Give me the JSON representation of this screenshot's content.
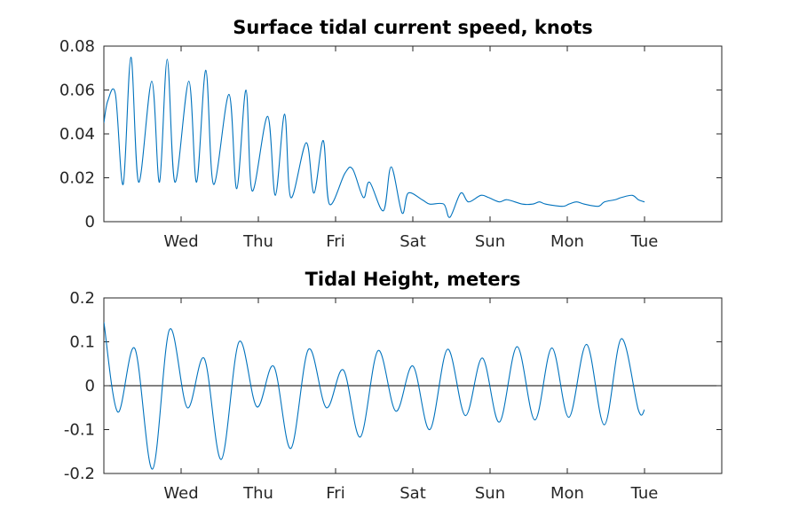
{
  "chart_data": [
    {
      "type": "line",
      "title": "Surface tidal current speed, knots",
      "xlim": [
        "Tue 00:00",
        "Wed 00:00 + 7d"
      ],
      "ylim": [
        0,
        0.08
      ],
      "yticks": [
        "0",
        "0.02",
        "0.04",
        "0.06",
        "0.08"
      ],
      "xticks": [
        "Wed",
        "Thu",
        "Fri",
        "Sat",
        "Sun",
        "Mon",
        "Tue"
      ],
      "grid": false,
      "color": "#0072bd",
      "series": [
        {
          "x_days": [
            0.0,
            0.05,
            0.15,
            0.25,
            0.35,
            0.45,
            0.62,
            0.72,
            0.82,
            0.92,
            1.1,
            1.2,
            1.32,
            1.42,
            1.62,
            1.72,
            1.84,
            1.92,
            2.12,
            2.22,
            2.34,
            2.42,
            2.62,
            2.72,
            2.84,
            2.92,
            3.12,
            3.22,
            3.36,
            3.44,
            3.62,
            3.72,
            3.86,
            3.94,
            4.12,
            4.22,
            4.4,
            4.48,
            4.62,
            4.72,
            4.88,
            4.98,
            5.12,
            5.22,
            5.42,
            5.55,
            5.64,
            5.72,
            5.94,
            6.02,
            6.12,
            6.22,
            6.4,
            6.48,
            6.62,
            6.7,
            6.84,
            6.92,
            7.0
          ],
          "values": [
            0.045,
            0.055,
            0.058,
            0.017,
            0.075,
            0.018,
            0.064,
            0.018,
            0.074,
            0.018,
            0.064,
            0.018,
            0.069,
            0.017,
            0.058,
            0.015,
            0.06,
            0.014,
            0.048,
            0.012,
            0.049,
            0.011,
            0.036,
            0.013,
            0.037,
            0.008,
            0.022,
            0.024,
            0.011,
            0.018,
            0.005,
            0.025,
            0.004,
            0.013,
            0.01,
            0.008,
            0.008,
            0.002,
            0.013,
            0.009,
            0.012,
            0.011,
            0.009,
            0.01,
            0.008,
            0.008,
            0.009,
            0.008,
            0.007,
            0.008,
            0.009,
            0.008,
            0.007,
            0.009,
            0.01,
            0.011,
            0.012,
            0.01,
            0.009
          ]
        }
      ]
    },
    {
      "type": "line",
      "title": "Tidal Height, meters",
      "ylim": [
        -0.2,
        0.2
      ],
      "yticks": [
        "-0.2",
        "-0.1",
        "0",
        "0.1",
        "0.2"
      ],
      "xticks": [
        "Wed",
        "Thu",
        "Fri",
        "Sat",
        "Sun",
        "Mon",
        "Tue"
      ],
      "grid": false,
      "color": "#0072bd",
      "zero_line": true,
      "series": [
        {
          "x_days": [
            0.0,
            0.18,
            0.4,
            0.63,
            0.85,
            1.08,
            1.3,
            1.52,
            1.75,
            1.98,
            2.2,
            2.42,
            2.65,
            2.88,
            3.1,
            3.32,
            3.55,
            3.78,
            4.0,
            4.22,
            4.45,
            4.68,
            4.9,
            5.12,
            5.35,
            5.58,
            5.8,
            6.02,
            6.25,
            6.48,
            6.7,
            6.92,
            7.0
          ],
          "values": [
            0.145,
            -0.06,
            0.085,
            -0.19,
            0.128,
            -0.05,
            0.062,
            -0.168,
            0.1,
            -0.048,
            0.044,
            -0.143,
            0.083,
            -0.05,
            0.036,
            -0.117,
            0.08,
            -0.058,
            0.045,
            -0.1,
            0.083,
            -0.068,
            0.063,
            -0.083,
            0.089,
            -0.078,
            0.086,
            -0.072,
            0.094,
            -0.089,
            0.107,
            -0.055,
            -0.055
          ]
        }
      ]
    }
  ]
}
